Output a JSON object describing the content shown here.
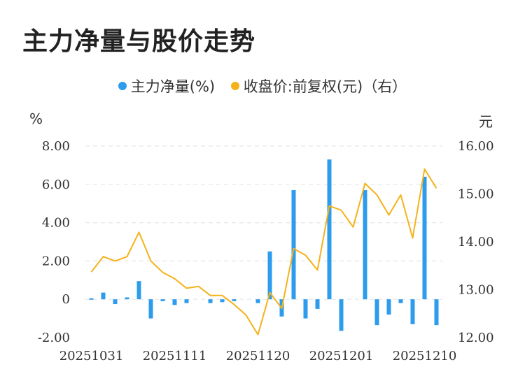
{
  "title": "主力净量与股价走势",
  "legend": {
    "bar_label": "主力净量(%)",
    "line_label": "收盘价:前复权(元)（右）"
  },
  "units": {
    "left": "%",
    "right": "元"
  },
  "colors": {
    "bar": "#2e9cec",
    "line": "#f5b21b",
    "grid": "#e6e6e6"
  },
  "chart_data": {
    "type": "bar",
    "grid": true,
    "legend_position": "top",
    "x_tick_labels": [
      "20251031",
      "20251111",
      "20251120",
      "20251201",
      "20251210"
    ],
    "left_axis": {
      "ylim": [
        -2,
        8
      ],
      "ticks": [
        "8.00",
        "6.00",
        "4.00",
        "2.00",
        "0",
        "-2.00"
      ],
      "tick_values": [
        8,
        6,
        4,
        2,
        0,
        -2
      ]
    },
    "right_axis": {
      "ylim": [
        12,
        16
      ],
      "ticks": [
        "16.00",
        "15.00",
        "14.00",
        "13.00",
        "12.00"
      ],
      "tick_values": [
        16,
        15,
        14,
        13,
        12
      ]
    },
    "series": [
      {
        "name": "主力净量(%)",
        "type": "bar",
        "axis": "left",
        "values": [
          0.05,
          0.35,
          -0.25,
          0.1,
          0.95,
          -1.0,
          -0.1,
          -0.3,
          -0.2,
          0.0,
          -0.2,
          -0.15,
          -0.1,
          0.0,
          -0.2,
          2.5,
          -0.9,
          5.7,
          -1.0,
          -0.5,
          7.3,
          -1.65,
          0.0,
          5.7,
          -1.35,
          -0.8,
          -0.2,
          -1.3,
          6.4,
          -1.35
        ]
      },
      {
        "name": "收盘价:前复权(元)（右）",
        "type": "line",
        "axis": "right",
        "values": [
          13.37,
          13.69,
          13.6,
          13.69,
          14.2,
          13.6,
          13.36,
          13.23,
          13.03,
          13.07,
          12.88,
          12.88,
          12.69,
          12.47,
          12.06,
          12.94,
          12.61,
          13.86,
          13.72,
          13.41,
          14.75,
          14.66,
          14.31,
          15.22,
          14.98,
          14.56,
          14.98,
          14.08,
          15.52,
          15.12
        ]
      }
    ]
  }
}
